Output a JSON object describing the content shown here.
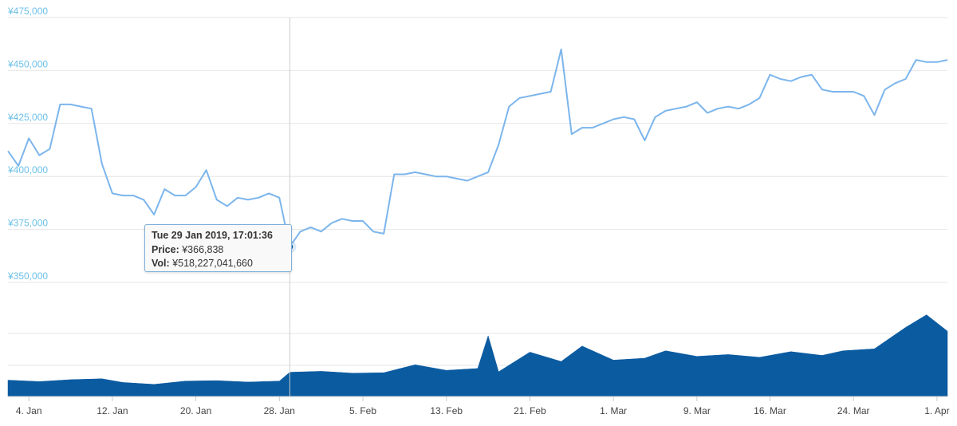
{
  "chart_data": {
    "type": "line",
    "title": "",
    "price_axis": {
      "ticks": [
        475000,
        450000,
        425000,
        400000,
        375000,
        350000
      ],
      "tick_labels": [
        "¥475,000",
        "¥450,000",
        "¥425,000",
        "¥400,000",
        "¥375,000",
        "¥350,000"
      ],
      "ylim": [
        350000,
        475000
      ]
    },
    "x_axis": {
      "type": "date",
      "range": [
        "2019-01-02",
        "2019-04-02"
      ],
      "ticks": [
        "2019-01-04",
        "2019-01-12",
        "2019-01-20",
        "2019-01-28",
        "2019-02-05",
        "2019-02-13",
        "2019-02-21",
        "2019-03-01",
        "2019-03-09",
        "2019-03-16",
        "2019-03-24",
        "2019-04-01"
      ],
      "tick_labels": [
        "4. Jan",
        "12. Jan",
        "20. Jan",
        "28. Jan",
        "5. Feb",
        "13. Feb",
        "21. Feb",
        "1. Mar",
        "9. Mar",
        "16. Mar",
        "24. Mar",
        "1. Apr"
      ]
    },
    "grid": true,
    "series": [
      {
        "kind": "price",
        "color": "#7cb5ec",
        "points": [
          [
            "2019-01-02",
            412000
          ],
          [
            "2019-01-03",
            405000
          ],
          [
            "2019-01-04",
            418000
          ],
          [
            "2019-01-05",
            410000
          ],
          [
            "2019-01-06",
            413000
          ],
          [
            "2019-01-07",
            434000
          ],
          [
            "2019-01-08",
            434000
          ],
          [
            "2019-01-09",
            433000
          ],
          [
            "2019-01-10",
            432000
          ],
          [
            "2019-01-11",
            406000
          ],
          [
            "2019-01-12",
            392000
          ],
          [
            "2019-01-13",
            391000
          ],
          [
            "2019-01-14",
            391000
          ],
          [
            "2019-01-15",
            389000
          ],
          [
            "2019-01-16",
            382000
          ],
          [
            "2019-01-17",
            394000
          ],
          [
            "2019-01-18",
            391000
          ],
          [
            "2019-01-19",
            391000
          ],
          [
            "2019-01-20",
            395000
          ],
          [
            "2019-01-21",
            403000
          ],
          [
            "2019-01-22",
            389000
          ],
          [
            "2019-01-23",
            386000
          ],
          [
            "2019-01-24",
            390000
          ],
          [
            "2019-01-25",
            389000
          ],
          [
            "2019-01-26",
            390000
          ],
          [
            "2019-01-27",
            392000
          ],
          [
            "2019-01-28",
            390000
          ],
          [
            "2019-01-29",
            366838
          ],
          [
            "2019-01-30",
            374000
          ],
          [
            "2019-01-31",
            376000
          ],
          [
            "2019-02-01",
            374000
          ],
          [
            "2019-02-02",
            378000
          ],
          [
            "2019-02-03",
            380000
          ],
          [
            "2019-02-04",
            379000
          ],
          [
            "2019-02-05",
            379000
          ],
          [
            "2019-02-06",
            374000
          ],
          [
            "2019-02-07",
            373000
          ],
          [
            "2019-02-08",
            401000
          ],
          [
            "2019-02-09",
            401000
          ],
          [
            "2019-02-10",
            402000
          ],
          [
            "2019-02-11",
            401000
          ],
          [
            "2019-02-12",
            400000
          ],
          [
            "2019-02-13",
            400000
          ],
          [
            "2019-02-14",
            399000
          ],
          [
            "2019-02-15",
            398000
          ],
          [
            "2019-02-16",
            400000
          ],
          [
            "2019-02-17",
            402000
          ],
          [
            "2019-02-18",
            415000
          ],
          [
            "2019-02-19",
            433000
          ],
          [
            "2019-02-20",
            437000
          ],
          [
            "2019-02-21",
            438000
          ],
          [
            "2019-02-22",
            439000
          ],
          [
            "2019-02-23",
            440000
          ],
          [
            "2019-02-24",
            460000
          ],
          [
            "2019-02-25",
            420000
          ],
          [
            "2019-02-26",
            423000
          ],
          [
            "2019-02-27",
            423000
          ],
          [
            "2019-02-28",
            425000
          ],
          [
            "2019-03-01",
            427000
          ],
          [
            "2019-03-02",
            428000
          ],
          [
            "2019-03-03",
            427000
          ],
          [
            "2019-03-04",
            417000
          ],
          [
            "2019-03-05",
            428000
          ],
          [
            "2019-03-06",
            431000
          ],
          [
            "2019-03-07",
            432000
          ],
          [
            "2019-03-08",
            433000
          ],
          [
            "2019-03-09",
            435000
          ],
          [
            "2019-03-10",
            430000
          ],
          [
            "2019-03-11",
            432000
          ],
          [
            "2019-03-12",
            433000
          ],
          [
            "2019-03-13",
            432000
          ],
          [
            "2019-03-14",
            434000
          ],
          [
            "2019-03-15",
            437000
          ],
          [
            "2019-03-16",
            448000
          ],
          [
            "2019-03-17",
            446000
          ],
          [
            "2019-03-18",
            445000
          ],
          [
            "2019-03-19",
            447000
          ],
          [
            "2019-03-20",
            448000
          ],
          [
            "2019-03-21",
            441000
          ],
          [
            "2019-03-22",
            440000
          ],
          [
            "2019-03-23",
            440000
          ],
          [
            "2019-03-24",
            440000
          ],
          [
            "2019-03-25",
            438000
          ],
          [
            "2019-03-26",
            429000
          ],
          [
            "2019-03-27",
            441000
          ],
          [
            "2019-03-28",
            444000
          ],
          [
            "2019-03-29",
            446000
          ],
          [
            "2019-03-30",
            455000
          ],
          [
            "2019-03-31",
            454000
          ],
          [
            "2019-04-01",
            454000
          ],
          [
            "2019-04-02",
            455000
          ]
        ]
      },
      {
        "kind": "volume",
        "color": "#0b5ba1",
        "points": [
          [
            "2019-01-02",
            3.5
          ],
          [
            "2019-01-05",
            3.2
          ],
          [
            "2019-01-08",
            3.6
          ],
          [
            "2019-01-11",
            3.8
          ],
          [
            "2019-01-13",
            3.0
          ],
          [
            "2019-01-16",
            2.6
          ],
          [
            "2019-01-19",
            3.3
          ],
          [
            "2019-01-22",
            3.4
          ],
          [
            "2019-01-25",
            3.1
          ],
          [
            "2019-01-28",
            3.3
          ],
          [
            "2019-01-29",
            5.2
          ],
          [
            "2019-02-01",
            5.4
          ],
          [
            "2019-02-04",
            5.0
          ],
          [
            "2019-02-07",
            5.1
          ],
          [
            "2019-02-10",
            6.8
          ],
          [
            "2019-02-13",
            5.6
          ],
          [
            "2019-02-16",
            6.0
          ],
          [
            "2019-02-17",
            13.0
          ],
          [
            "2019-02-18",
            5.3
          ],
          [
            "2019-02-21",
            9.5
          ],
          [
            "2019-02-24",
            7.5
          ],
          [
            "2019-02-26",
            10.8
          ],
          [
            "2019-03-01",
            7.8
          ],
          [
            "2019-03-04",
            8.2
          ],
          [
            "2019-03-06",
            9.8
          ],
          [
            "2019-03-09",
            8.6
          ],
          [
            "2019-03-12",
            9.0
          ],
          [
            "2019-03-15",
            8.4
          ],
          [
            "2019-03-18",
            9.6
          ],
          [
            "2019-03-21",
            8.8
          ],
          [
            "2019-03-23",
            9.8
          ],
          [
            "2019-03-26",
            10.2
          ],
          [
            "2019-03-29",
            14.8
          ],
          [
            "2019-03-31",
            17.5
          ],
          [
            "2019-04-02",
            14.0
          ]
        ]
      }
    ],
    "crosshair_x": "2019-01-29",
    "tooltip": {
      "title": "Tue 29 Jan 2019, 17:01:36",
      "price_label": "Price:",
      "price_value": "¥366,838",
      "vol_label": "Vol:",
      "vol_value": "¥518,227,041,660"
    }
  }
}
